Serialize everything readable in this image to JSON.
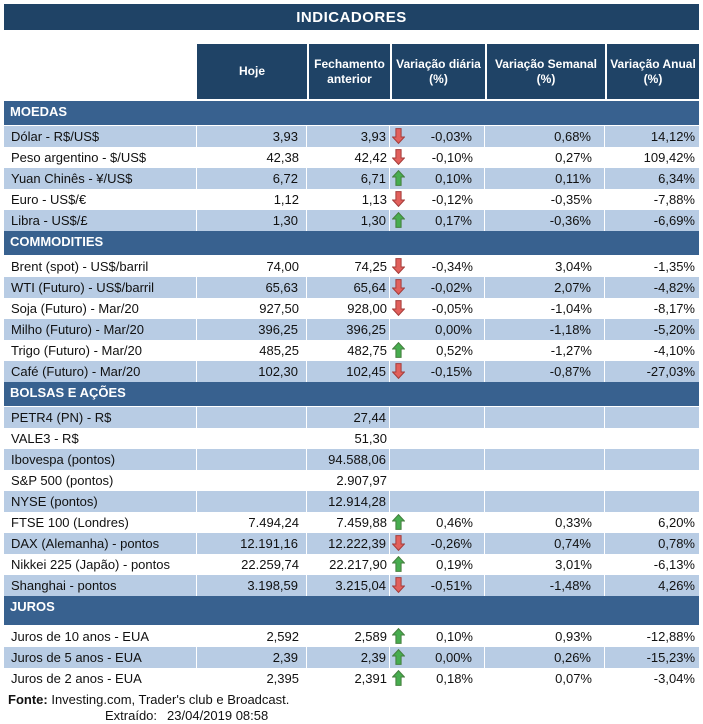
{
  "title": "INDICADORES",
  "columns": [
    "Hoje",
    "Fechamento anterior",
    "Variação diária (%)",
    "Variação Semanal (%)",
    "Variação Anual (%)"
  ],
  "sections": [
    {
      "name": "MOEDAS",
      "tall": false,
      "rows": [
        {
          "label": "Dólar - R$/US$",
          "hoje": "3,93",
          "fechamento": "3,93",
          "arrow": "down",
          "diaria": "-0,03%",
          "semanal": "0,68%",
          "anual": "14,12%",
          "shaded": true
        },
        {
          "label": "Peso argentino - $/US$",
          "hoje": "42,38",
          "fechamento": "42,42",
          "arrow": "down",
          "diaria": "-0,10%",
          "semanal": "0,27%",
          "anual": "109,42%",
          "shaded": false
        },
        {
          "label": "Yuan Chinês - ¥/US$",
          "hoje": "6,72",
          "fechamento": "6,71",
          "arrow": "up",
          "diaria": "0,10%",
          "semanal": "0,11%",
          "anual": "6,34%",
          "shaded": true
        },
        {
          "label": "Euro - US$/€",
          "hoje": "1,12",
          "fechamento": "1,13",
          "arrow": "down",
          "diaria": "-0,12%",
          "semanal": "-0,35%",
          "anual": "-7,88%",
          "shaded": false
        },
        {
          "label": "Libra - US$/£",
          "hoje": "1,30",
          "fechamento": "1,30",
          "arrow": "up",
          "diaria": "0,17%",
          "semanal": "-0,36%",
          "anual": "-6,69%",
          "shaded": true
        }
      ]
    },
    {
      "name": "COMMODITIES",
      "tall": false,
      "rows": [
        {
          "label": "Brent (spot) - US$/barril",
          "hoje": "74,00",
          "fechamento": "74,25",
          "arrow": "down",
          "diaria": "-0,34%",
          "semanal": "3,04%",
          "anual": "-1,35%",
          "shaded": false
        },
        {
          "label": "WTI (Futuro) - US$/barril",
          "hoje": "65,63",
          "fechamento": "65,64",
          "arrow": "down",
          "diaria": "-0,02%",
          "semanal": "2,07%",
          "anual": "-4,82%",
          "shaded": true
        },
        {
          "label": "Soja (Futuro) - Mar/20",
          "hoje": "927,50",
          "fechamento": "928,00",
          "arrow": "down",
          "diaria": "-0,05%",
          "semanal": "-1,04%",
          "anual": "-8,17%",
          "shaded": false
        },
        {
          "label": "Milho (Futuro) - Mar/20",
          "hoje": "396,25",
          "fechamento": "396,25",
          "arrow": null,
          "diaria": "0,00%",
          "semanal": "-1,18%",
          "anual": "-5,20%",
          "shaded": true
        },
        {
          "label": "Trigo (Futuro) - Mar/20",
          "hoje": "485,25",
          "fechamento": "482,75",
          "arrow": "up",
          "diaria": "0,52%",
          "semanal": "-1,27%",
          "anual": "-4,10%",
          "shaded": false
        },
        {
          "label": "Café (Futuro) - Mar/20",
          "hoje": "102,30",
          "fechamento": "102,45",
          "arrow": "down",
          "diaria": "-0,15%",
          "semanal": "-0,87%",
          "anual": "-27,03%",
          "shaded": true
        }
      ]
    },
    {
      "name": "BOLSAS E AÇÕES",
      "tall": false,
      "rows": [
        {
          "label": "PETR4 (PN) - R$",
          "hoje": "",
          "fechamento": "27,44",
          "arrow": null,
          "diaria": "",
          "semanal": "",
          "anual": "",
          "shaded": true
        },
        {
          "label": "VALE3 - R$",
          "hoje": "",
          "fechamento": "51,30",
          "arrow": null,
          "diaria": "",
          "semanal": "",
          "anual": "",
          "shaded": false
        },
        {
          "label": "Ibovespa (pontos)",
          "hoje": "",
          "fechamento": "94.588,06",
          "arrow": null,
          "diaria": "",
          "semanal": "",
          "anual": "",
          "shaded": true
        },
        {
          "label": "S&P 500 (pontos)",
          "hoje": "",
          "fechamento": "2.907,97",
          "arrow": null,
          "diaria": "",
          "semanal": "",
          "anual": "",
          "shaded": false
        },
        {
          "label": "NYSE (pontos)",
          "hoje": "",
          "fechamento": "12.914,28",
          "arrow": null,
          "diaria": "",
          "semanal": "",
          "anual": "",
          "shaded": true
        },
        {
          "label": "FTSE 100 (Londres)",
          "hoje": "7.494,24",
          "fechamento": "7.459,88",
          "arrow": "up",
          "diaria": "0,46%",
          "semanal": "0,33%",
          "anual": "6,20%",
          "shaded": false
        },
        {
          "label": "DAX (Alemanha) - pontos",
          "hoje": "12.191,16",
          "fechamento": "12.222,39",
          "arrow": "down",
          "diaria": "-0,26%",
          "semanal": "0,74%",
          "anual": "0,78%",
          "shaded": true
        },
        {
          "label": "Nikkei 225 (Japão) - pontos",
          "hoje": "22.259,74",
          "fechamento": "22.217,90",
          "arrow": "up",
          "diaria": "0,19%",
          "semanal": "3,01%",
          "anual": "-6,13%",
          "shaded": false
        },
        {
          "label": "Shanghai - pontos",
          "hoje": "3.198,59",
          "fechamento": "3.215,04",
          "arrow": "down",
          "diaria": "-0,51%",
          "semanal": "-1,48%",
          "anual": "4,26%",
          "shaded": true
        }
      ]
    },
    {
      "name": "JUROS",
      "tall": true,
      "rows": [
        {
          "label": "Juros de 10 anos - EUA",
          "hoje": "2,592",
          "fechamento": "2,589",
          "arrow": "up",
          "diaria": "0,10%",
          "semanal": "0,93%",
          "anual": "-12,88%",
          "shaded": false
        },
        {
          "label": "Juros de 5 anos - EUA",
          "hoje": "2,39",
          "fechamento": "2,39",
          "arrow": "up",
          "diaria": "0,00%",
          "semanal": "0,26%",
          "anual": "-15,23%",
          "shaded": true
        },
        {
          "label": "Juros de 2 anos - EUA",
          "hoje": "2,395",
          "fechamento": "2,391",
          "arrow": "up",
          "diaria": "0,18%",
          "semanal": "0,07%",
          "anual": "-3,04%",
          "shaded": false
        }
      ]
    }
  ],
  "footer": {
    "fonte_label": "Fonte:",
    "fonte_text": " Investing.com, Trader's club e Broadcast.",
    "extraido_label": "Extraído:",
    "extraido_value": "23/04/2019 08:58"
  },
  "colors": {
    "navy_header": "#1F4366",
    "section_band": "#38618F",
    "row_stripe": "#B8CCE4",
    "arrow_up_fill": "#47AD4F",
    "arrow_up_stroke": "#457F3F",
    "arrow_down_fill": "#E2605C",
    "arrow_down_stroke": "#A43D3B"
  }
}
